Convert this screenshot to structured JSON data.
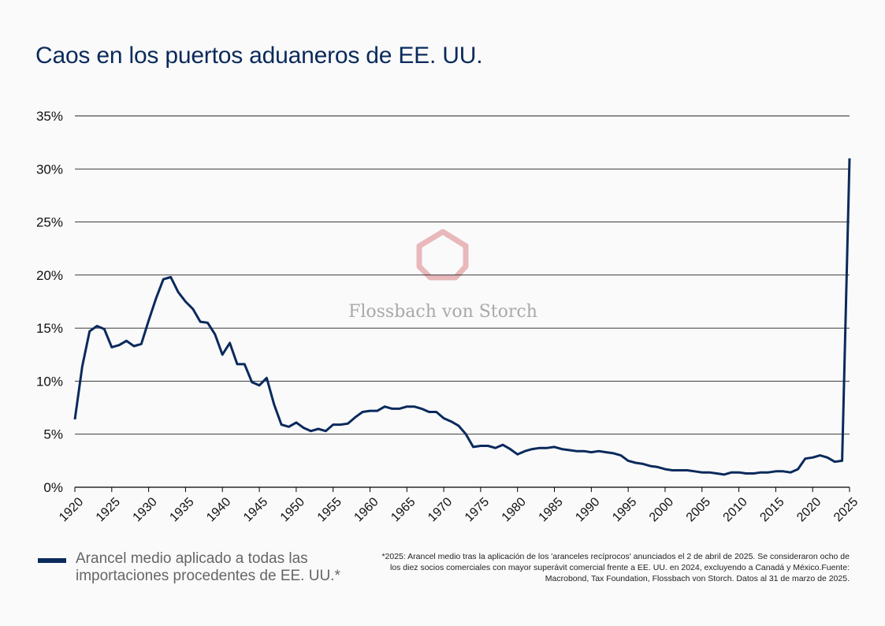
{
  "title": "Caos en los puertos aduaneros de EE. UU.",
  "watermark": "Flossbach von Storch",
  "colors": {
    "line": "#0a2a5c",
    "grid": "#000000",
    "watermark": "#e8b8bb"
  },
  "legend": {
    "label": "Arancel medio aplicado a todas las importaciones procedentes de EE. UU.*"
  },
  "footnote": "*2025: Arancel medio tras la aplicación de los 'aranceles recíprocos' anunciados el 2 de abril de 2025. Se consideraron ocho de los diez socios comerciales con mayor superávit comercial frente a EE. UU. en 2024, excluyendo a Canadá y México.Fuente: Macrobond, Tax Foundation, Flossbach von Storch. Datos al 31 de marzo de 2025.",
  "chart_data": {
    "type": "line",
    "title": "Caos en los puertos aduaneros de EE. UU.",
    "xlim": [
      1920,
      2025
    ],
    "ylim": [
      0,
      35
    ],
    "x_ticks": [
      1920,
      1925,
      1930,
      1935,
      1940,
      1945,
      1950,
      1955,
      1960,
      1965,
      1970,
      1975,
      1980,
      1985,
      1990,
      1995,
      2000,
      2005,
      2010,
      2015,
      2020,
      2025
    ],
    "y_ticks": [
      0,
      5,
      10,
      15,
      20,
      25,
      30,
      35
    ],
    "y_tick_labels": [
      "0%",
      "5%",
      "10%",
      "15%",
      "20%",
      "25%",
      "30%",
      "35%"
    ],
    "grid": "horizontal",
    "legend_position": "bottom-left",
    "series": [
      {
        "name": "Arancel medio aplicado a todas las importaciones procedentes de EE. UU.*",
        "x": [
          1920,
          1921,
          1922,
          1923,
          1924,
          1925,
          1926,
          1927,
          1928,
          1929,
          1930,
          1931,
          1932,
          1933,
          1934,
          1935,
          1936,
          1937,
          1938,
          1939,
          1940,
          1941,
          1942,
          1943,
          1944,
          1945,
          1946,
          1947,
          1948,
          1949,
          1950,
          1951,
          1952,
          1953,
          1954,
          1955,
          1956,
          1957,
          1958,
          1959,
          1960,
          1961,
          1962,
          1963,
          1964,
          1965,
          1966,
          1967,
          1968,
          1969,
          1970,
          1971,
          1972,
          1973,
          1974,
          1975,
          1976,
          1977,
          1978,
          1979,
          1980,
          1981,
          1982,
          1983,
          1984,
          1985,
          1986,
          1987,
          1988,
          1989,
          1990,
          1991,
          1992,
          1993,
          1994,
          1995,
          1996,
          1997,
          1998,
          1999,
          2000,
          2001,
          2002,
          2003,
          2004,
          2005,
          2006,
          2007,
          2008,
          2009,
          2010,
          2011,
          2012,
          2013,
          2014,
          2015,
          2016,
          2017,
          2018,
          2019,
          2020,
          2021,
          2022,
          2023,
          2024,
          2025
        ],
        "values": [
          6.4,
          11.4,
          14.7,
          15.2,
          14.9,
          13.2,
          13.4,
          13.8,
          13.3,
          13.5,
          15.7,
          17.8,
          19.6,
          19.8,
          18.4,
          17.5,
          16.8,
          15.6,
          15.5,
          14.4,
          12.5,
          13.6,
          11.6,
          11.6,
          9.9,
          9.6,
          10.3,
          7.8,
          5.9,
          5.7,
          6.1,
          5.6,
          5.3,
          5.5,
          5.3,
          5.9,
          5.9,
          6.0,
          6.6,
          7.1,
          7.2,
          7.2,
          7.6,
          7.4,
          7.4,
          7.6,
          7.6,
          7.4,
          7.1,
          7.1,
          6.5,
          6.2,
          5.8,
          5.0,
          3.8,
          3.9,
          3.9,
          3.7,
          4.0,
          3.6,
          3.1,
          3.4,
          3.6,
          3.7,
          3.7,
          3.8,
          3.6,
          3.5,
          3.4,
          3.4,
          3.3,
          3.4,
          3.3,
          3.2,
          3.0,
          2.5,
          2.3,
          2.2,
          2.0,
          1.9,
          1.7,
          1.6,
          1.6,
          1.6,
          1.5,
          1.4,
          1.4,
          1.3,
          1.2,
          1.4,
          1.4,
          1.3,
          1.3,
          1.4,
          1.4,
          1.5,
          1.5,
          1.4,
          1.7,
          2.7,
          2.8,
          3.0,
          2.8,
          2.4,
          2.5,
          31.0
        ]
      }
    ]
  }
}
